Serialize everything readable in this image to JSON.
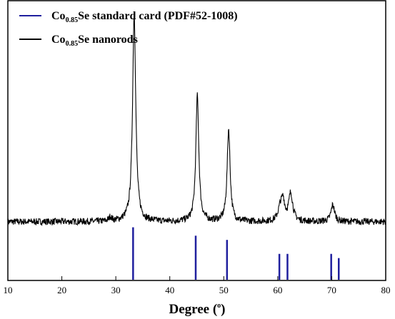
{
  "chart_data": {
    "type": "line",
    "title": "",
    "xlabel": "Degree (°)",
    "xlabel_main": "Degree (",
    "xlabel_sup": "o",
    "xlabel_close": ")",
    "ylabel": "",
    "xlim": [
      10,
      80
    ],
    "ylim": [
      0,
      1
    ],
    "x_ticks": [
      "10",
      "20",
      "30",
      "40",
      "50",
      "60",
      "70",
      "80"
    ],
    "grid": false,
    "legend_position": "top-left",
    "series": [
      {
        "name": "Co0.85Se standard card (PDF#52-1008)",
        "legend_parts": {
          "base": "Co",
          "sub": "0.85",
          "rest": "Se standard card (PDF#52-1008)"
        },
        "type": "stick",
        "color": "#1f1f9e",
        "x": [
          33.2,
          44.8,
          50.6,
          60.3,
          61.8,
          69.9,
          71.3
        ],
        "y": [
          0.19,
          0.16,
          0.145,
          0.095,
          0.095,
          0.095,
          0.08
        ]
      },
      {
        "name": "Co0.85Se nanorods",
        "legend_parts": {
          "base": "Co",
          "sub": "0.85",
          "rest": "Se nanorods"
        },
        "type": "line",
        "color": "#000000",
        "baseline": 0.21,
        "noise": 0.012,
        "peaks": [
          {
            "x": 33.4,
            "height": 0.745,
            "width": 0.35
          },
          {
            "x": 45.1,
            "height": 0.45,
            "width": 0.33
          },
          {
            "x": 50.9,
            "height": 0.33,
            "width": 0.33
          },
          {
            "x": 60.5,
            "height": 0.05,
            "width": 0.5
          },
          {
            "x": 61.0,
            "height": 0.06,
            "width": 0.35
          },
          {
            "x": 62.4,
            "height": 0.1,
            "width": 0.45
          },
          {
            "x": 70.2,
            "height": 0.06,
            "width": 0.4
          },
          {
            "x": 29.0,
            "height": 0.015,
            "width": 0.3
          }
        ]
      }
    ]
  }
}
